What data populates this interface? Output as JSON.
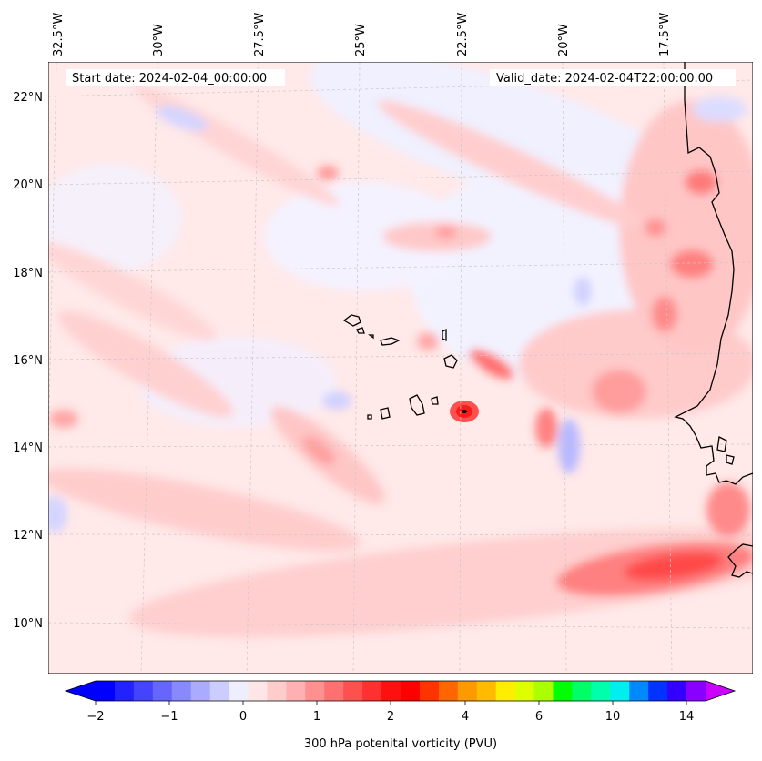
{
  "header": {
    "start_date": "Start date: 2024-02-04_00:00:00",
    "valid_date": "Valid_date: 2024-02-04T22:00:00.00"
  },
  "map": {
    "longitude_labels": [
      "32.5°W",
      "30°W",
      "27.5°W",
      "25°W",
      "22.5°W",
      "20°W",
      "17.5°W"
    ],
    "latitude_labels": [
      "22°N",
      "20°N",
      "18°N",
      "16°N",
      "14°N",
      "12°N",
      "10°N"
    ],
    "field": "300 hPa potential vorticity"
  },
  "colorbar": {
    "label": "300 hPa potenital vorticity (PVU)",
    "ticks": [
      "−2",
      "−1",
      "0",
      "1",
      "2",
      "4",
      "6",
      "10",
      "14"
    ],
    "colors": [
      "#0000ff",
      "#2222ff",
      "#4444ff",
      "#6666ff",
      "#8888ff",
      "#aaaaff",
      "#ccccff",
      "#eeeeff",
      "#ffe6e6",
      "#ffcccc",
      "#ffb0b0",
      "#ff9090",
      "#ff7070",
      "#ff5050",
      "#ff3030",
      "#ff1010",
      "#ff0000",
      "#ff3300",
      "#ff6600",
      "#ff9900",
      "#ffbb00",
      "#ffee00",
      "#ddff00",
      "#aaff00",
      "#00ff00",
      "#00ff66",
      "#00ffaa",
      "#00eeee",
      "#0088ff",
      "#0033ff",
      "#3300ff",
      "#8800ff"
    ],
    "under_color": "#0000ff",
    "over_color": "#cc00ff"
  }
}
